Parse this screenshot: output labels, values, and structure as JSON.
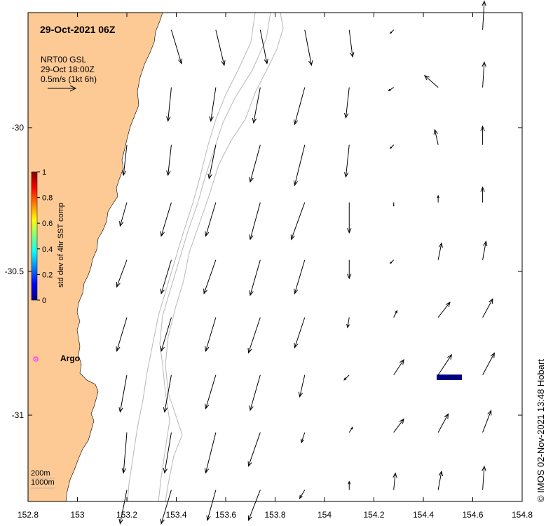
{
  "title": "29-Oct-2021 06Z",
  "legend": {
    "product": "NRT00 GSL",
    "time": "29-Oct 18:00Z",
    "scale": "0.5m/s (1kt 6h)"
  },
  "colorbar": {
    "label": "std dev of 4hr SST comp",
    "ticks": [
      "1",
      "0.8",
      "0.6",
      "0.4",
      "0.2",
      "0"
    ],
    "colors": [
      "#00007f",
      "#0000ff",
      "#0080ff",
      "#00ffff",
      "#80ff80",
      "#ffff00",
      "#ff8000",
      "#ff0000",
      "#7f0000"
    ]
  },
  "axes": {
    "x_ticks": [
      "152.8",
      "153",
      "153.2",
      "153.4",
      "153.6",
      "153.8",
      "154",
      "154.2",
      "154.4",
      "154.6",
      "154.8"
    ],
    "y_ticks": [
      "-30",
      "-30.5",
      "-31"
    ],
    "xlim": [
      152.8,
      154.8
    ],
    "ylim": [
      -31.3,
      -29.6
    ]
  },
  "isobaths": [
    "200m",
    "1000m"
  ],
  "marker": {
    "label": "Argo",
    "lon": 152.83,
    "lat": -30.8,
    "color": "#ff40ff"
  },
  "vector_field": {
    "lons": [
      152.84,
      153.02,
      153.2,
      153.38,
      153.56,
      153.74,
      153.92,
      154.1,
      154.28,
      154.46,
      154.64
    ],
    "lats": [
      -29.66,
      -29.86,
      -30.06,
      -30.26,
      -30.46,
      -30.66,
      -30.86,
      -31.06,
      -31.26
    ],
    "rows": [
      [
        null,
        null,
        null,
        [
          0.3,
          -1.0
        ],
        [
          0.25,
          -1.05
        ],
        [
          0.2,
          -1.0
        ],
        [
          0.2,
          -1.05
        ],
        [
          0.1,
          -0.8
        ],
        [
          -0.1,
          -0.1
        ],
        null,
        [
          0.05,
          0.85
        ]
      ],
      [
        null,
        null,
        null,
        [
          -0.1,
          -1.0
        ],
        [
          -0.15,
          -1.0
        ],
        [
          -0.2,
          -1.05
        ],
        [
          -0.3,
          -1.1
        ],
        [
          -0.1,
          -0.9
        ],
        [
          -0.15,
          -0.1
        ],
        [
          -0.4,
          0.35
        ],
        [
          0.05,
          0.75
        ]
      ],
      [
        null,
        null,
        [
          -0.1,
          -0.9
        ],
        [
          -0.1,
          -0.9
        ],
        [
          -0.2,
          -1.0
        ],
        [
          -0.3,
          -1.1
        ],
        [
          -0.3,
          -1.2
        ],
        [
          -0.1,
          -0.95
        ],
        [
          -0.1,
          -0.1
        ],
        [
          -0.1,
          0.45
        ],
        [
          0.0,
          0.55
        ]
      ],
      [
        null,
        null,
        [
          -0.2,
          -0.7
        ],
        [
          -0.3,
          -1.0
        ],
        [
          -0.3,
          -1.0
        ],
        [
          -0.3,
          -1.1
        ],
        [
          -0.4,
          -1.1
        ],
        [
          0.0,
          -0.9
        ],
        [
          0.0,
          -0.1
        ],
        [
          0.0,
          0.2
        ],
        [
          0.0,
          0.45
        ]
      ],
      [
        null,
        null,
        [
          -0.3,
          -0.8
        ],
        [
          -0.3,
          -1.0
        ],
        [
          -0.35,
          -1.0
        ],
        [
          -0.3,
          -1.05
        ],
        [
          -0.3,
          -1.0
        ],
        [
          0.0,
          -0.55
        ],
        [
          -0.1,
          -0.1
        ],
        [
          0.1,
          0.5
        ],
        [
          0.1,
          0.55
        ]
      ],
      [
        null,
        null,
        [
          -0.3,
          -1.0
        ],
        [
          -0.3,
          -1.0
        ],
        [
          -0.3,
          -1.0
        ],
        [
          -0.35,
          -1.05
        ],
        [
          -0.3,
          -0.9
        ],
        [
          -0.05,
          -0.3
        ],
        [
          0.1,
          0.2
        ],
        [
          0.35,
          0.45
        ],
        [
          0.3,
          0.55
        ]
      ],
      [
        null,
        null,
        [
          -0.2,
          -1.1
        ],
        [
          -0.2,
          -1.1
        ],
        [
          -0.3,
          -1.0
        ],
        [
          -0.3,
          -1.05
        ],
        [
          -0.15,
          -0.65
        ],
        [
          -0.15,
          -0.15
        ],
        [
          0.3,
          0.45
        ],
        [
          0.4,
          0.6
        ],
        [
          0.35,
          0.65
        ]
      ],
      [
        null,
        null,
        [
          -0.1,
          -1.2
        ],
        [
          -0.2,
          -1.2
        ],
        [
          -0.3,
          -1.2
        ],
        [
          -0.35,
          -1.0
        ],
        [
          -0.1,
          -0.3
        ],
        [
          0.1,
          0.15
        ],
        [
          0.3,
          0.4
        ],
        [
          0.3,
          0.55
        ],
        [
          0.25,
          0.65
        ]
      ],
      [
        null,
        null,
        [
          -0.2,
          -1.0
        ],
        [
          -0.3,
          -1.0
        ],
        [
          -0.25,
          -0.9
        ],
        [
          -0.35,
          -0.9
        ],
        [
          -0.15,
          -0.25
        ],
        [
          0.0,
          0.25
        ],
        [
          0.05,
          0.5
        ],
        [
          0.1,
          0.55
        ],
        [
          0.05,
          0.7
        ]
      ]
    ]
  },
  "credit": "© IMOS 02-Nov-2021 13:48 Hobart"
}
